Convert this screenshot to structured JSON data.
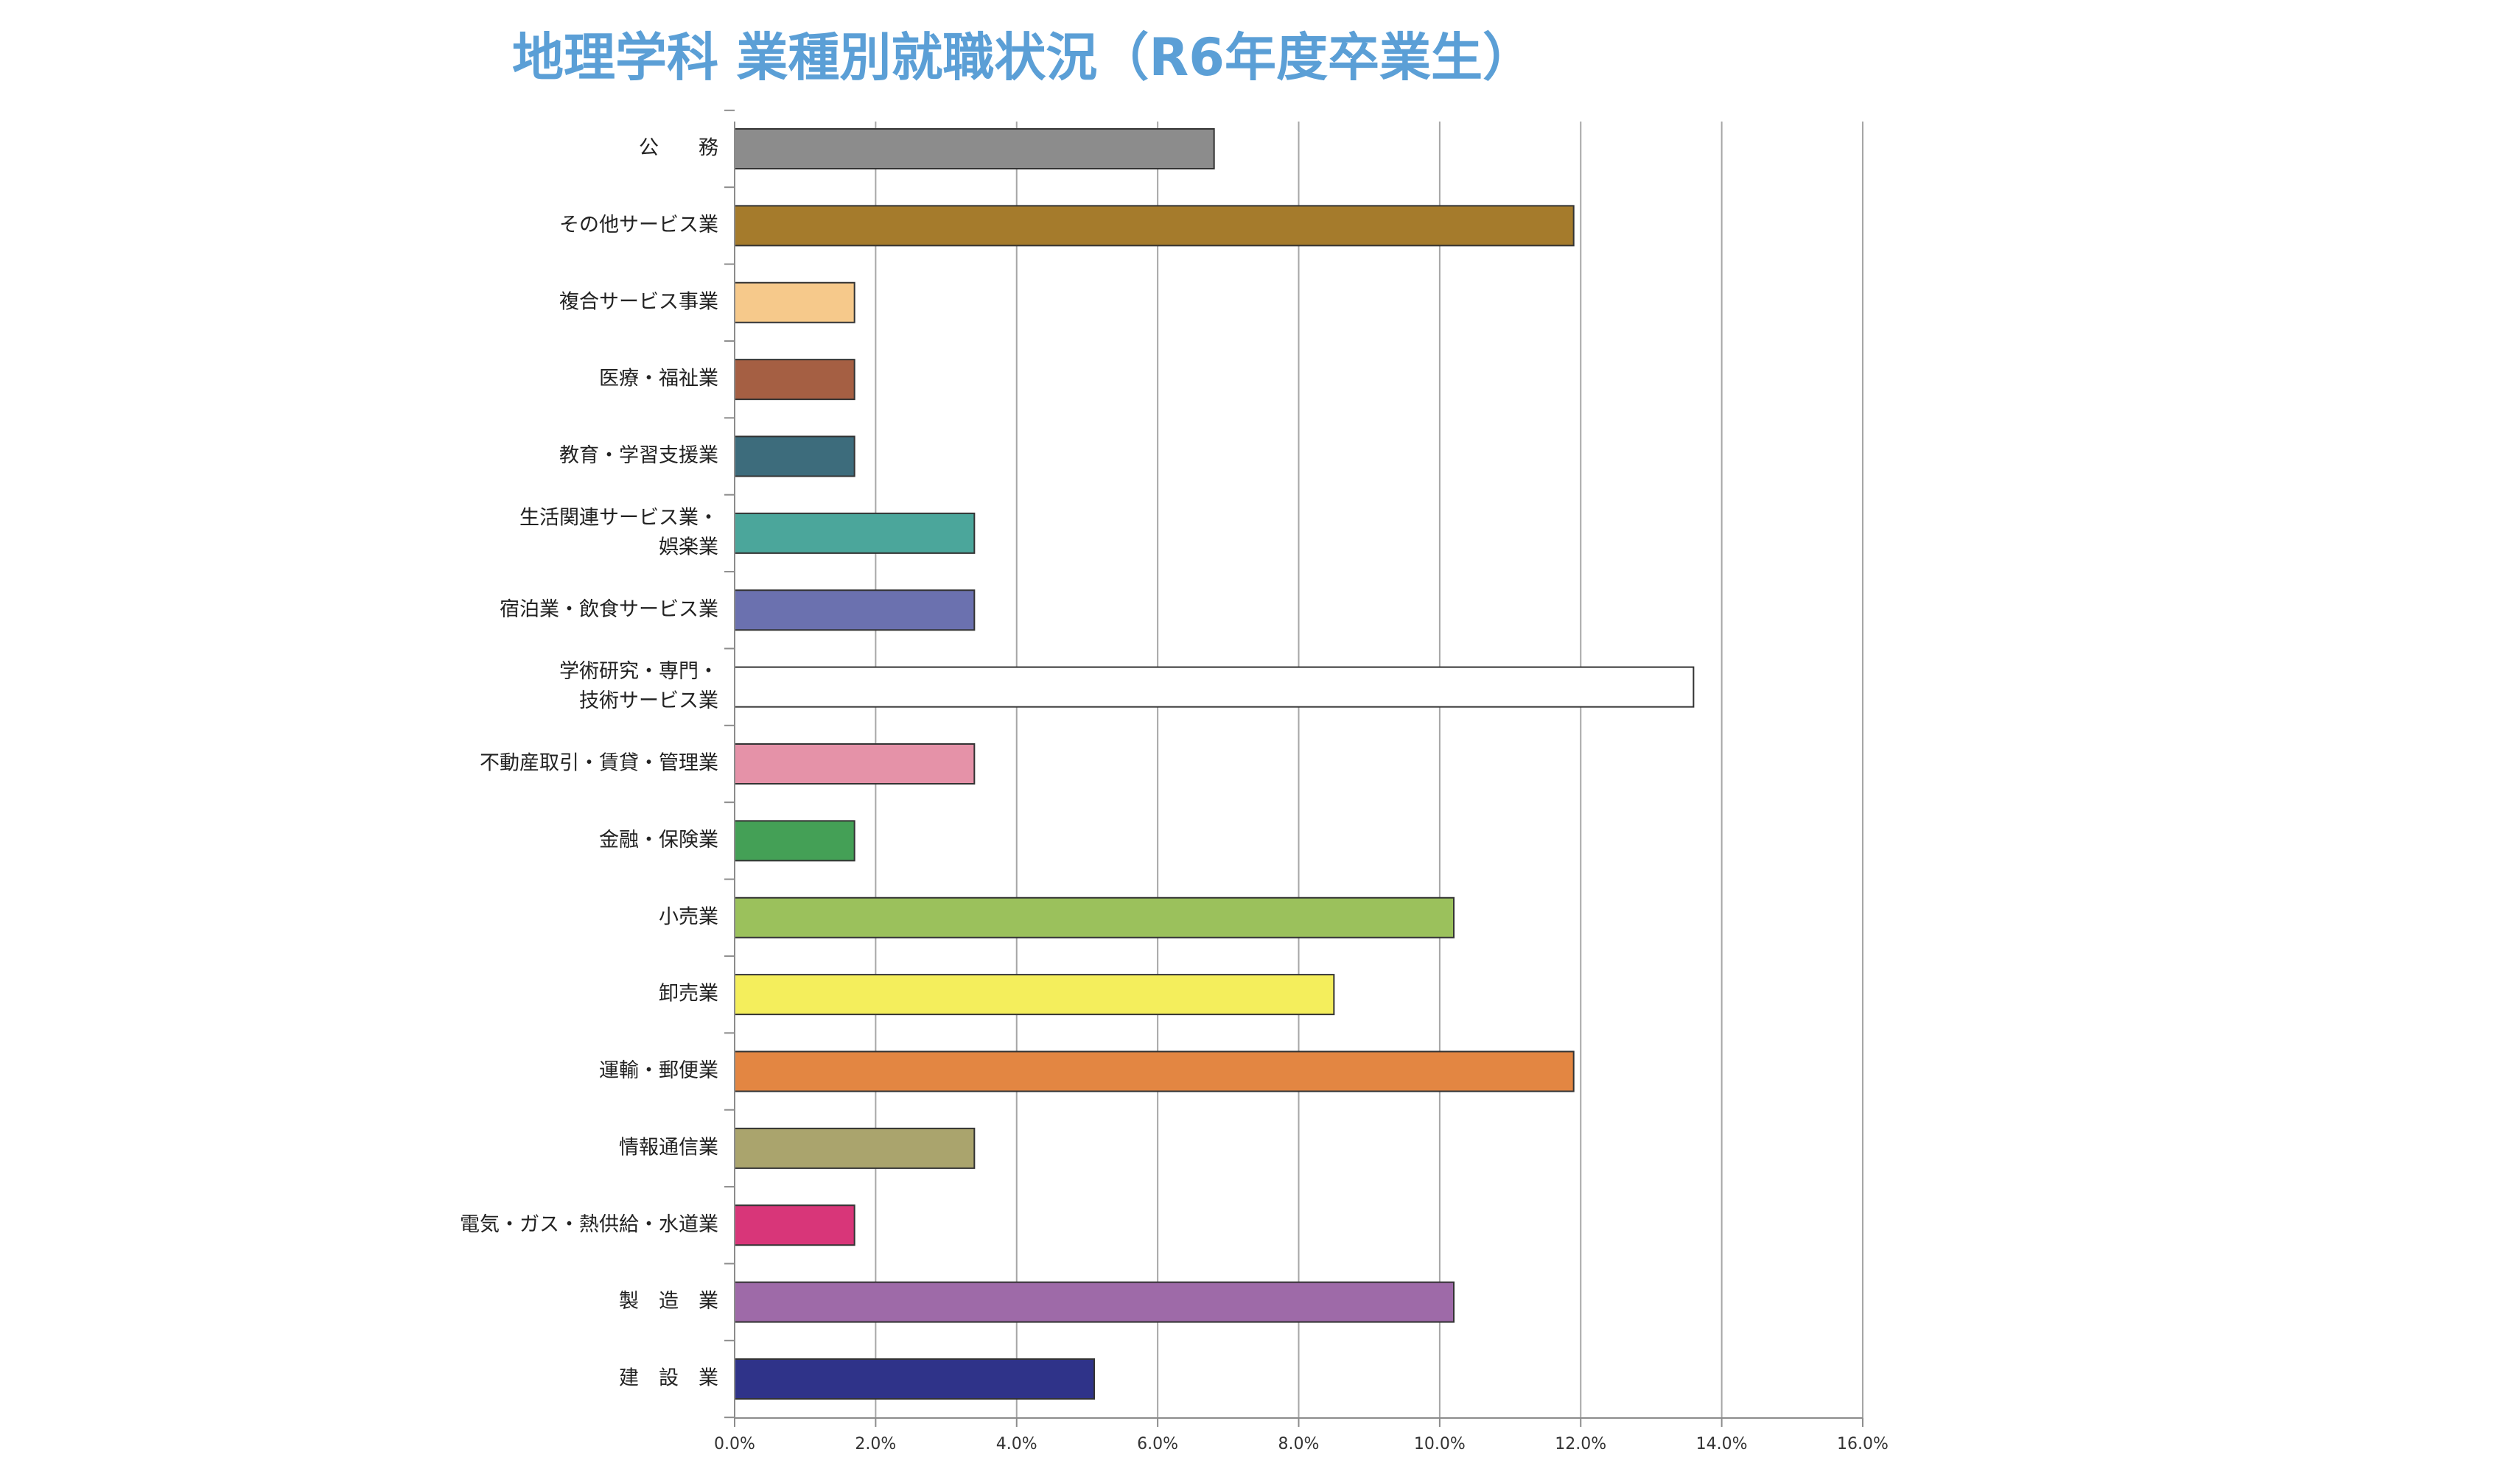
{
  "chart_data": {
    "type": "bar",
    "orientation": "horizontal",
    "title": "地理学科 業種別就職状況（R6年度卒業生）",
    "categories": [
      "公　務",
      "その他サービス業",
      "複合サービス事業",
      "医療・福祉業",
      "教育・学習支援業",
      "生活関連サービス業・娯楽業",
      "宿泊業・飲食サービス業",
      "学術研究・専門・技術サービス業",
      "不動産取引・賃貸・管理業",
      "金融・保険業",
      "小売業",
      "卸売業",
      "運輸・郵便業",
      "情報通信業",
      "電気・ガス・熱供給・水道業",
      "製 造 業",
      "建 設 業"
    ],
    "category_lines": [
      [
        "公　　務"
      ],
      [
        "その他サービス業"
      ],
      [
        "複合サービス事業"
      ],
      [
        "医療・福祉業"
      ],
      [
        "教育・学習支援業"
      ],
      [
        "生活関連サービス業・",
        "娯楽業"
      ],
      [
        "宿泊業・飲食サービス業"
      ],
      [
        "学術研究・専門・",
        "技術サービス業"
      ],
      [
        "不動産取引・賃貸・管理業"
      ],
      [
        "金融・保険業"
      ],
      [
        "小売業"
      ],
      [
        "卸売業"
      ],
      [
        "運輸・郵便業"
      ],
      [
        "情報通信業"
      ],
      [
        "電気・ガス・熱供給・水道業"
      ],
      [
        "製　造　業"
      ],
      [
        "建　設　業"
      ]
    ],
    "values": [
      6.8,
      11.9,
      1.7,
      1.7,
      1.7,
      3.4,
      3.4,
      13.6,
      3.4,
      1.7,
      10.2,
      8.5,
      11.9,
      3.4,
      1.7,
      10.2,
      5.1
    ],
    "colors": [
      "#8c8c8c",
      "#a57b2c",
      "#f6c98b",
      "#a55f43",
      "#3d6c7c",
      "#4ba69b",
      "#6b71af",
      "#ffffff",
      "#e592a8",
      "#44a056",
      "#9bc15c",
      "#f4ee5c",
      "#e38642",
      "#aaa46d",
      "#d83679",
      "#9e6aa8",
      "#2f3389"
    ],
    "xlim": [
      0,
      16
    ],
    "x_ticks": [
      0,
      2,
      4,
      6,
      8,
      10,
      12,
      14,
      16
    ],
    "x_tick_labels": [
      "0.0%",
      "2.0%",
      "4.0%",
      "6.0%",
      "8.0%",
      "10.0%",
      "12.0%",
      "14.0%",
      "16.0%"
    ],
    "grid": "vertical",
    "xlabel": "",
    "ylabel": ""
  }
}
